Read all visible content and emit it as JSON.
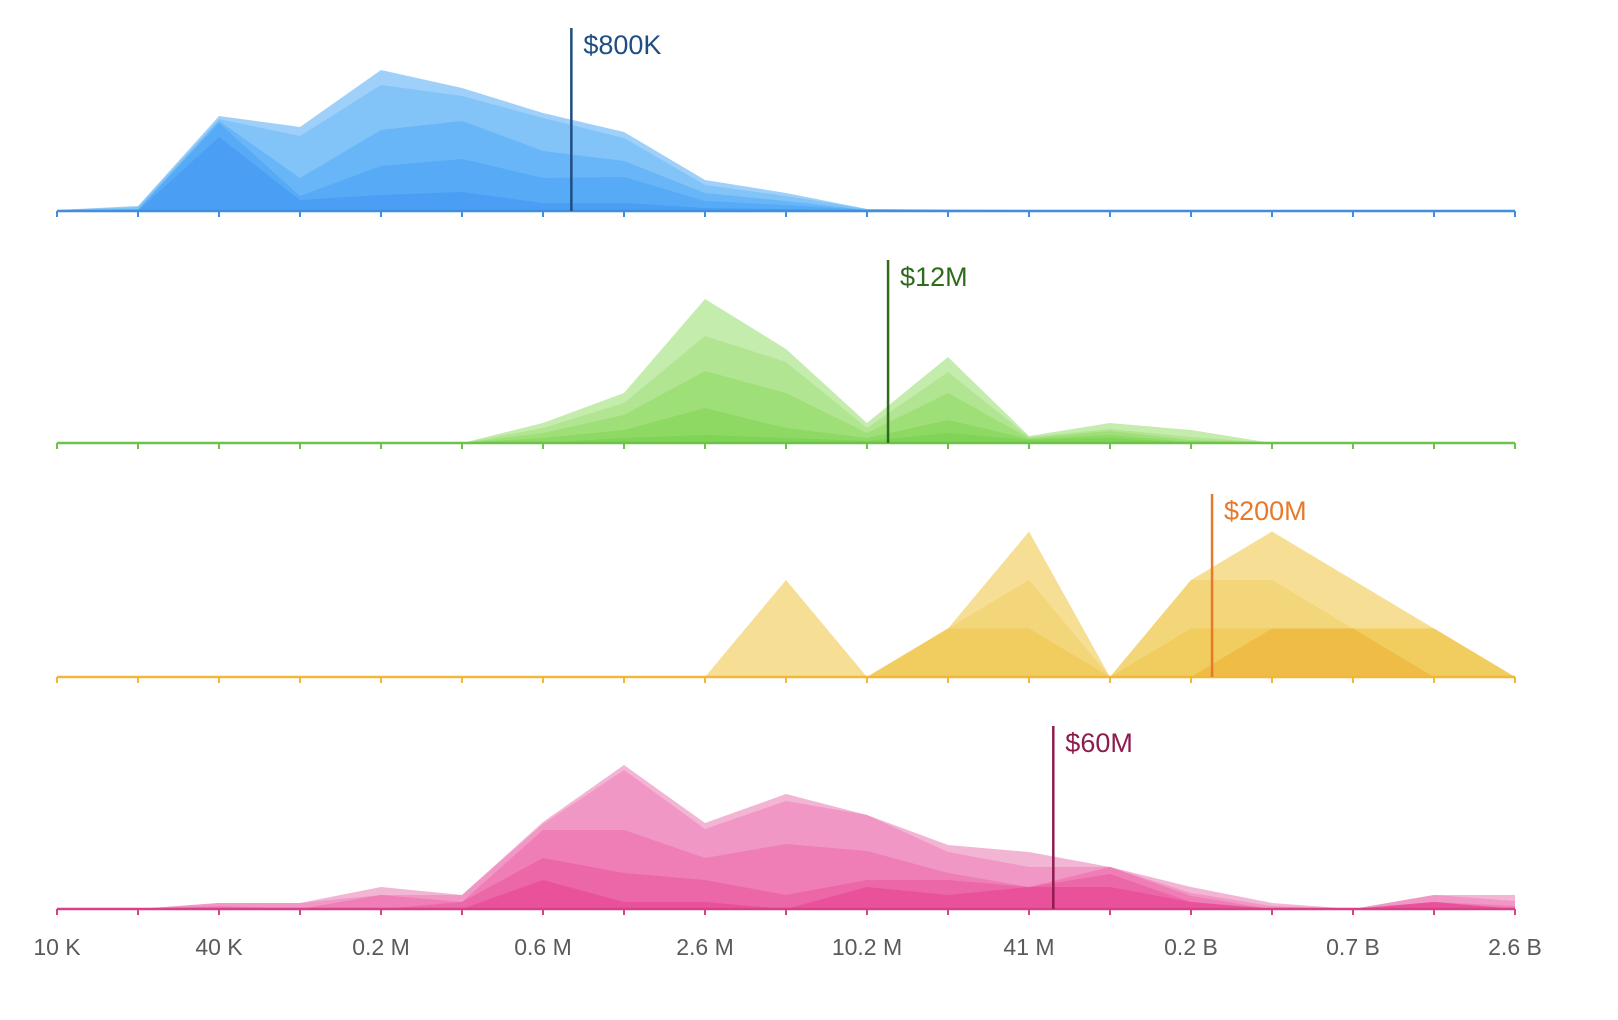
{
  "chart_data": {
    "type": "area",
    "layout": "ridgeline",
    "x_scale": "log",
    "x_ticks_count": 19,
    "x_tick_labels": [
      "10 K",
      "40 K",
      "0.2 M",
      "0.6 M",
      "2.6 M",
      "10.2 M",
      "41 M",
      "0.2 B",
      "0.7 B",
      "2.6 B"
    ],
    "x_tick_label_every": 2,
    "grid": false,
    "panels": [
      {
        "name": "blue",
        "axis_color": "#3f8ee0",
        "marker": {
          "label": "$800K",
          "x_index": 6.35,
          "color": "#1f4e82"
        },
        "layer_colors": [
          "#9fd0fa",
          "#82c3f8",
          "#68b6f7",
          "#56aaf6",
          "#4a9ff5"
        ],
        "layers": [
          [
            1,
            5,
            95,
            84,
            141,
            123,
            98,
            79,
            31,
            18,
            2,
            1.5,
            1,
            1,
            0.5,
            0.5,
            0.5,
            0.5,
            0.5
          ],
          [
            1,
            4,
            92,
            75,
            126,
            115,
            93,
            73,
            26,
            15,
            2,
            1,
            1,
            0.5,
            0.5,
            0.5,
            0.5,
            0.5,
            0.5
          ],
          [
            0.5,
            2,
            90,
            33,
            81,
            90,
            60,
            50,
            18,
            10,
            1,
            0.5,
            0.5,
            0,
            0,
            0,
            0,
            0,
            0
          ],
          [
            0.5,
            1,
            88,
            15,
            45,
            52,
            33,
            34,
            10,
            6,
            1,
            0,
            0,
            0,
            0,
            0,
            0,
            0,
            0
          ],
          [
            0,
            0,
            74,
            11,
            16,
            19,
            8,
            8,
            3,
            2,
            0.5,
            0,
            0,
            0,
            0,
            0,
            0,
            0,
            0
          ]
        ]
      },
      {
        "name": "green",
        "axis_color": "#6cc24a",
        "marker": {
          "label": "$12M",
          "x_index": 10.26,
          "color": "#2e6b1a"
        },
        "layer_colors": [
          "#c4ecad",
          "#b1e592",
          "#9fdf78",
          "#8dd964",
          "#7fd355"
        ],
        "layers": [
          [
            0,
            0,
            0,
            0,
            0,
            0,
            20,
            50,
            144,
            94,
            20,
            86,
            7,
            20,
            13,
            0,
            0,
            0,
            0
          ],
          [
            0,
            0,
            0,
            0,
            0,
            0,
            15,
            40,
            107,
            81,
            15,
            71,
            6,
            14,
            6,
            0,
            0,
            0,
            0
          ],
          [
            0,
            0,
            0,
            0,
            0,
            0,
            10,
            28,
            72,
            50,
            10,
            50,
            5,
            12,
            3,
            0,
            0,
            0,
            0
          ],
          [
            0,
            0,
            0,
            0,
            0,
            0,
            5,
            13,
            35,
            15,
            5,
            23,
            4,
            8,
            1,
            0,
            0,
            0,
            0
          ],
          [
            0,
            0,
            0,
            0,
            0,
            0,
            0,
            5,
            8,
            5,
            2,
            10,
            3,
            5,
            0,
            0,
            0,
            0,
            0
          ]
        ]
      },
      {
        "name": "yellow",
        "axis_color": "#f0b83a",
        "marker": {
          "label": "$200M",
          "x_index": 14.26,
          "color": "#e8792b"
        },
        "layer_colors": [
          "#f6df94",
          "#f3d679",
          "#f1cc5e",
          "#efbd45"
        ],
        "layers": [
          [
            0,
            0,
            0,
            0,
            0,
            0,
            0,
            0,
            0,
            2,
            0,
            1,
            3,
            0,
            2,
            3,
            2,
            1,
            0
          ],
          [
            0,
            0,
            0,
            0,
            0,
            0,
            0,
            0,
            0,
            0,
            0,
            1,
            2,
            0,
            2,
            2,
            1,
            1,
            0
          ],
          [
            0,
            0,
            0,
            0,
            0,
            0,
            0,
            0,
            0,
            0,
            0,
            1,
            1,
            0,
            1,
            1,
            1,
            1,
            0
          ],
          [
            0,
            0,
            0,
            0,
            0,
            0,
            0,
            0,
            0,
            0,
            0,
            0,
            0,
            0,
            0,
            1,
            1,
            0,
            0
          ]
        ]
      },
      {
        "name": "pink",
        "axis_color": "#d9408a",
        "marker": {
          "label": "$60M",
          "x_index": 12.3,
          "color": "#8e1c4f"
        },
        "layer_colors": [
          "#f3b5d4",
          "#f097c5",
          "#ee7eb5",
          "#ec67a7",
          "#e9529a"
        ],
        "layers": [
          [
            0,
            0,
            6,
            6,
            22,
            14,
            87,
            144,
            86,
            115,
            94,
            64,
            57,
            42,
            22,
            6,
            0,
            14,
            14
          ],
          [
            0,
            0,
            6,
            6,
            14,
            14,
            85,
            139,
            80,
            108,
            94,
            57,
            42,
            42,
            16,
            3,
            0,
            14,
            8
          ],
          [
            0,
            0,
            3,
            0,
            14,
            7,
            79,
            79,
            51,
            65,
            58,
            36,
            22,
            42,
            13,
            0,
            0,
            7,
            3
          ],
          [
            0,
            0,
            0,
            0,
            0,
            7,
            51,
            36,
            29,
            14,
            29,
            29,
            22,
            35,
            7,
            0,
            0,
            7,
            0
          ],
          [
            0,
            0,
            0,
            0,
            0,
            0,
            29,
            7,
            7,
            0,
            22,
            14,
            22,
            22,
            7,
            0,
            0,
            7,
            0
          ]
        ]
      }
    ]
  }
}
